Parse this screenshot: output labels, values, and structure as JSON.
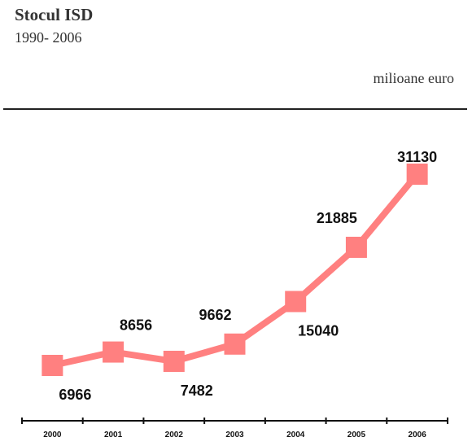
{
  "chart_data": {
    "type": "line",
    "title": "Stocul ISD",
    "subtitle": "1990- 2006",
    "unit_label": "milioane euro",
    "categories": [
      "2000",
      "2001",
      "2002",
      "2003",
      "2004",
      "2005",
      "2006"
    ],
    "values": [
      6966,
      8656,
      7482,
      9662,
      15040,
      21885,
      31130
    ],
    "data_labels": [
      "6966",
      "8656",
      "7482",
      "9662",
      "15040",
      "21885",
      "31130"
    ],
    "label_position": [
      "below",
      "above",
      "below",
      "above",
      "below",
      "above",
      "above"
    ],
    "series_color": "#ff8080",
    "marker": "square",
    "grid": false,
    "legend": "none"
  }
}
